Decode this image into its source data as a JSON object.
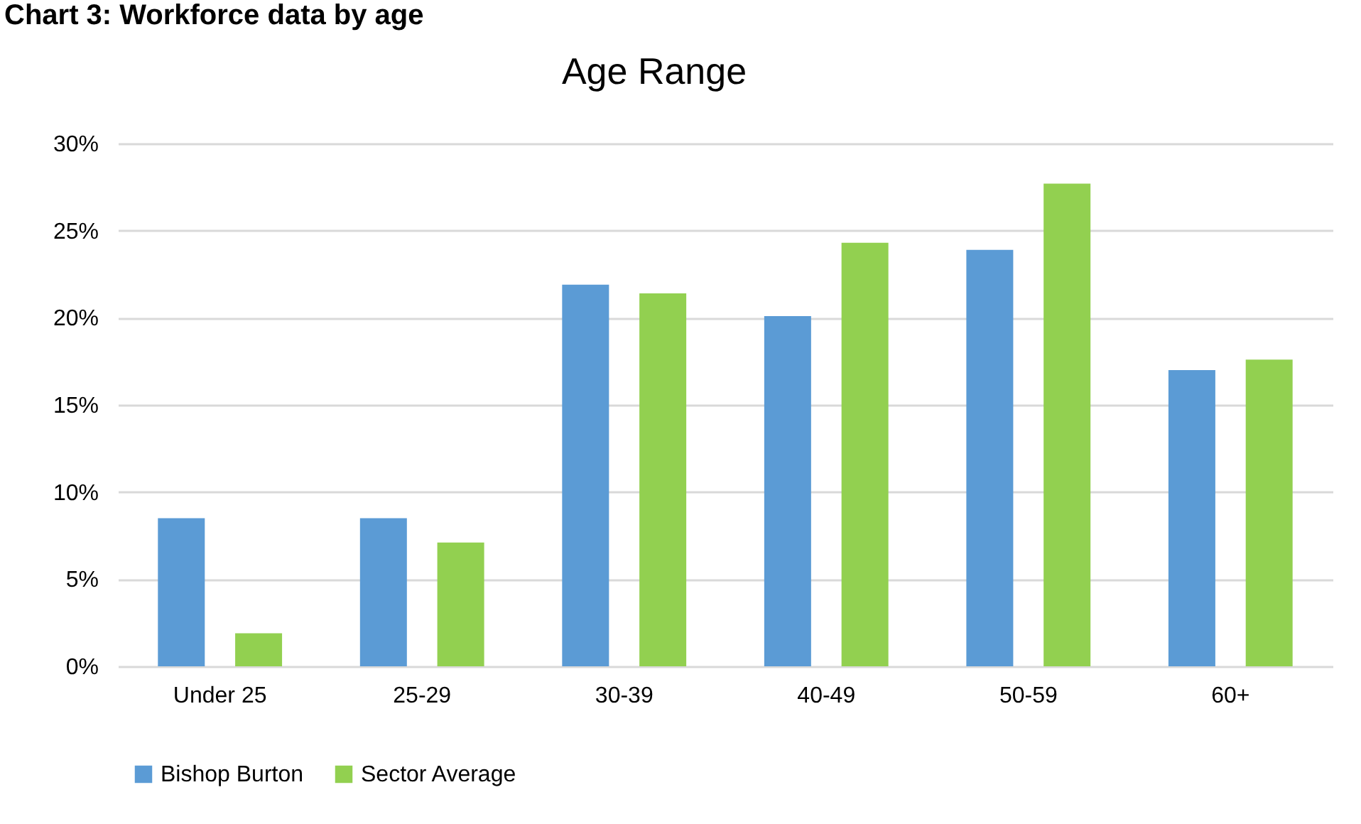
{
  "chart_data": {
    "type": "bar",
    "title": "Age Range",
    "annotations": [
      "Chart 3: Workforce data by age"
    ],
    "categories": [
      "Under 25",
      "25-29",
      "30-39",
      "40-49",
      "50-59",
      "60+"
    ],
    "series": [
      {
        "name": "Bishop Burton",
        "color": "#5b9bd5",
        "values": [
          8.5,
          8.5,
          21.9,
          20.1,
          23.9,
          17.0
        ]
      },
      {
        "name": "Sector Average",
        "color": "#92d050",
        "values": [
          1.9,
          7.1,
          21.4,
          24.3,
          27.7,
          17.6
        ]
      }
    ],
    "ylim": [
      0,
      30
    ],
    "yticks": [
      {
        "value": 0,
        "label": "0%"
      },
      {
        "value": 5,
        "label": "5%"
      },
      {
        "value": 10,
        "label": "10%"
      },
      {
        "value": 15,
        "label": "15%"
      },
      {
        "value": 20,
        "label": "20%"
      },
      {
        "value": 25,
        "label": "25%"
      },
      {
        "value": 30,
        "label": "30%"
      }
    ],
    "grid": "y",
    "legend": "bottom"
  }
}
